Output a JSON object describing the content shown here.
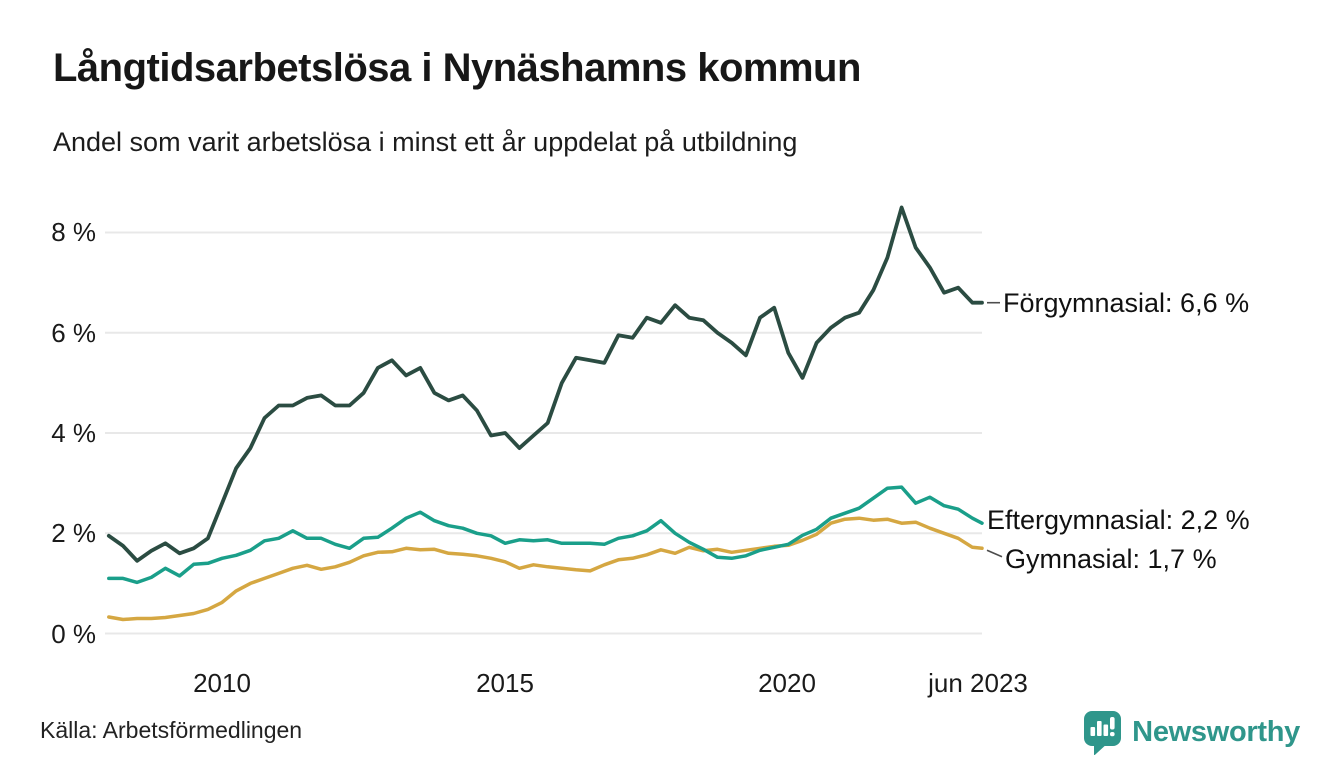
{
  "chart_data": {
    "type": "line",
    "title": "Långtidsarbetslösa i Nynäshamns kommun",
    "subtitle": "Andel som varit arbetslösa i minst ett år uppdelat på utbildning",
    "source": "Källa: Arbetsförmedlingen",
    "unit": "%",
    "grid": true,
    "legend_position": "end-of-line-labels",
    "xlim": [
      2008.0,
      2023.42
    ],
    "ylim": [
      0,
      8.6
    ],
    "x_start": 2008.0,
    "x_step": 0.25,
    "x_end": 2023.42,
    "y_ticks": [
      {
        "value": 8,
        "label": "8 %"
      },
      {
        "value": 6,
        "label": "6 %"
      },
      {
        "value": 4,
        "label": "4 %"
      },
      {
        "value": 2,
        "label": "2 %"
      },
      {
        "value": 0,
        "label": "0 %"
      }
    ],
    "x_ticks": [
      {
        "value": 2010,
        "label": "2010"
      },
      {
        "value": 2015,
        "label": "2015"
      },
      {
        "value": 2020,
        "label": "2020"
      },
      {
        "value": 2023.42,
        "label": "jun 2023"
      }
    ],
    "series": [
      {
        "name": "Förgymnasial",
        "annotation": "Förgymnasial: 6,6 %",
        "last_value": "6,6 %",
        "color": "#2b4c42",
        "stroke_width": 3.8,
        "connector": true,
        "values": [
          1.95,
          1.75,
          1.45,
          1.65,
          1.8,
          1.6,
          1.7,
          1.9,
          2.6,
          3.3,
          3.7,
          4.3,
          4.55,
          4.55,
          4.7,
          4.75,
          4.55,
          4.55,
          4.8,
          5.3,
          5.45,
          5.15,
          5.3,
          4.8,
          4.65,
          4.75,
          4.45,
          3.95,
          4.0,
          3.7,
          3.95,
          4.2,
          5.0,
          5.5,
          5.45,
          5.4,
          5.95,
          5.9,
          6.3,
          6.2,
          6.55,
          6.3,
          6.25,
          6.0,
          5.8,
          5.55,
          6.3,
          6.5,
          5.6,
          5.1,
          5.8,
          6.1,
          6.3,
          6.4,
          6.85,
          7.5,
          8.5,
          7.7,
          7.3,
          6.8,
          6.9,
          6.6,
          6.6
        ]
      },
      {
        "name": "Eftergymnasial",
        "annotation": "Eftergymnasial: 2,2 %",
        "last_value": "2,2 %",
        "color": "#1a9f8a",
        "stroke_width": 3.5,
        "connector": false,
        "values": [
          1.1,
          1.1,
          1.02,
          1.12,
          1.3,
          1.15,
          1.38,
          1.4,
          1.5,
          1.56,
          1.66,
          1.85,
          1.9,
          2.05,
          1.9,
          1.9,
          1.78,
          1.7,
          1.9,
          1.92,
          2.1,
          2.3,
          2.42,
          2.25,
          2.15,
          2.1,
          2.0,
          1.95,
          1.8,
          1.87,
          1.85,
          1.87,
          1.8,
          1.8,
          1.8,
          1.78,
          1.9,
          1.95,
          2.05,
          2.25,
          2.0,
          1.82,
          1.68,
          1.52,
          1.5,
          1.55,
          1.66,
          1.72,
          1.78,
          1.96,
          2.08,
          2.3,
          2.4,
          2.5,
          2.7,
          2.9,
          2.92,
          2.6,
          2.72,
          2.55,
          2.48,
          2.3,
          2.2
        ]
      },
      {
        "name": "Gymnasial",
        "annotation": "Gymnasial: 1,7 %",
        "last_value": "1,7 %",
        "color": "#d5a742",
        "stroke_width": 3.5,
        "connector": true,
        "values": [
          0.33,
          0.28,
          0.3,
          0.3,
          0.32,
          0.36,
          0.4,
          0.48,
          0.62,
          0.85,
          1.0,
          1.1,
          1.2,
          1.3,
          1.36,
          1.28,
          1.33,
          1.42,
          1.55,
          1.62,
          1.63,
          1.7,
          1.67,
          1.68,
          1.6,
          1.58,
          1.55,
          1.5,
          1.43,
          1.3,
          1.37,
          1.33,
          1.3,
          1.27,
          1.25,
          1.37,
          1.47,
          1.5,
          1.57,
          1.67,
          1.6,
          1.72,
          1.65,
          1.68,
          1.62,
          1.66,
          1.7,
          1.74,
          1.76,
          1.86,
          1.98,
          2.2,
          2.28,
          2.3,
          2.26,
          2.28,
          2.2,
          2.22,
          2.1,
          2.0,
          1.9,
          1.72,
          1.7
        ]
      }
    ]
  },
  "branding": {
    "name": "Newsworthy",
    "color": "#2f968b"
  },
  "colors": {
    "grid": "#e8e8e8",
    "connector": "#4d4d4d",
    "background": "#ffffff",
    "text": "#1a1a1a"
  }
}
